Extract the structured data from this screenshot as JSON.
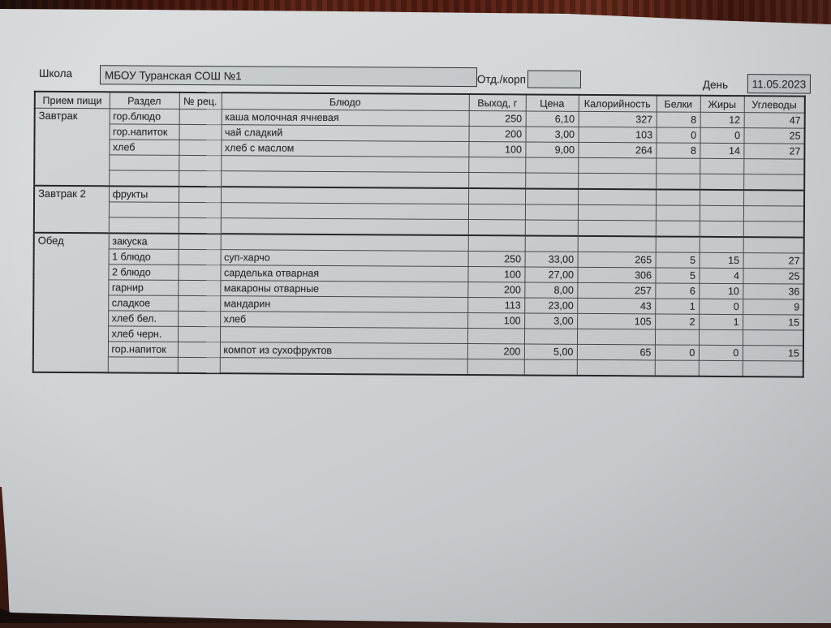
{
  "colors": {
    "desk_wood": "#341a14",
    "paper": "#cfd2d4",
    "table_line": "#45484c",
    "ink": "#2b2e31"
  },
  "form": {
    "school_label": "Школа",
    "school_value": "МБОУ Туранская СОШ №1",
    "dept_label": "Отд./корп",
    "dept_value": "",
    "day_label": "День",
    "day_value": "11.05.2023"
  },
  "menu_table": {
    "columns": [
      "Прием пищи",
      "Раздел",
      "№ рец.",
      "Блюдо",
      "Выход, г",
      "Цена",
      "Калорийность",
      "Белки",
      "Жиры",
      "Углеводы"
    ],
    "sections": [
      {
        "meal": "Завтрак",
        "rows": [
          [
            "гор.блюдо",
            "",
            "каша молочная ячневая",
            "250",
            "6,10",
            "327",
            "8",
            "12",
            "47"
          ],
          [
            "гор.напиток",
            "",
            "чай сладкий",
            "200",
            "3,00",
            "103",
            "0",
            "0",
            "25"
          ],
          [
            "хлеб",
            "",
            "хлеб с маслом",
            "100",
            "9,00",
            "264",
            "8",
            "14",
            "27"
          ],
          [
            "",
            "",
            "",
            "",
            "",
            "",
            "",
            "",
            ""
          ],
          [
            "",
            "",
            "",
            "",
            "",
            "",
            "",
            "",
            ""
          ]
        ]
      },
      {
        "meal": "Завтрак 2",
        "rows": [
          [
            "фрукты",
            "",
            "",
            "",
            "",
            "",
            "",
            "",
            ""
          ],
          [
            "",
            "",
            "",
            "",
            "",
            "",
            "",
            "",
            ""
          ],
          [
            "",
            "",
            "",
            "",
            "",
            "",
            "",
            "",
            ""
          ]
        ]
      },
      {
        "meal": "Обед",
        "rows": [
          [
            "закуска",
            "",
            "",
            "",
            "",
            "",
            "",
            "",
            ""
          ],
          [
            "1 блюдо",
            "",
            "суп-харчо",
            "250",
            "33,00",
            "265",
            "5",
            "15",
            "27"
          ],
          [
            "2 блюдо",
            "",
            "сарделька отварная",
            "100",
            "27,00",
            "306",
            "5",
            "4",
            "25"
          ],
          [
            "гарнир",
            "",
            "макароны отварные",
            "200",
            "8,00",
            "257",
            "6",
            "10",
            "36"
          ],
          [
            "сладкое",
            "",
            "мандарин",
            "113",
            "23,00",
            "43",
            "1",
            "0",
            "9"
          ],
          [
            "хлеб бел.",
            "",
            "хлеб",
            "100",
            "3,00",
            "105",
            "2",
            "1",
            "15"
          ],
          [
            "хлеб черн.",
            "",
            "",
            "",
            "",
            "",
            "",
            "",
            ""
          ],
          [
            "гор.напиток",
            "",
            "компот из сухофруктов",
            "200",
            "5,00",
            "65",
            "0",
            "0",
            "15"
          ],
          [
            "",
            "",
            "",
            "",
            "",
            "",
            "",
            "",
            ""
          ]
        ]
      }
    ]
  }
}
